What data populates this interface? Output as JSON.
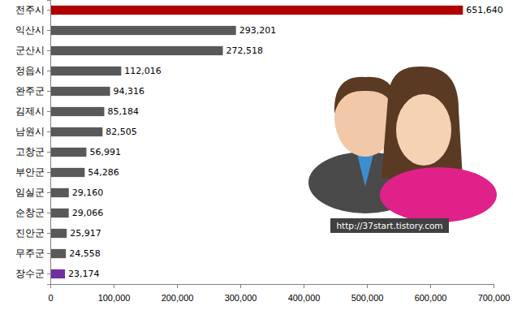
{
  "chart_data": {
    "type": "bar",
    "orientation": "horizontal",
    "categories": [
      "전주시",
      "익산시",
      "군산시",
      "정읍시",
      "완주군",
      "김제시",
      "남원시",
      "고창군",
      "부안군",
      "임실군",
      "순창군",
      "진안군",
      "무주군",
      "장수군"
    ],
    "values": [
      651640,
      293201,
      272518,
      112016,
      94316,
      85184,
      82505,
      56991,
      54286,
      29160,
      29066,
      25917,
      24558,
      23174
    ],
    "value_labels": [
      "651,640",
      "293,201",
      "272,518",
      "112,016",
      "94,316",
      "85,184",
      "82,505",
      "56,991",
      "54,286",
      "29,160",
      "29,066",
      "25,917",
      "24,558",
      "23,174"
    ],
    "colors": [
      "#b00000",
      "#595959",
      "#595959",
      "#595959",
      "#595959",
      "#595959",
      "#595959",
      "#595959",
      "#595959",
      "#595959",
      "#595959",
      "#595959",
      "#595959",
      "#7030a0"
    ],
    "xlim": [
      0,
      700000
    ],
    "xticks": [
      0,
      {
        "value": 100000,
        "label": "100,000"
      },
      {
        "value": 200000,
        "label": "200,000"
      },
      {
        "value": 300000,
        "label": "300,000"
      },
      {
        "value": 400000,
        "label": "400,000"
      },
      {
        "value": 500000,
        "label": "500,000"
      },
      {
        "value": 600000,
        "label": "600,000"
      },
      {
        "value": 700000,
        "label": "700,000"
      }
    ],
    "grid": false,
    "data_labels": true,
    "annotations": [
      {
        "text": "http://37start.tistory.com"
      }
    ]
  }
}
